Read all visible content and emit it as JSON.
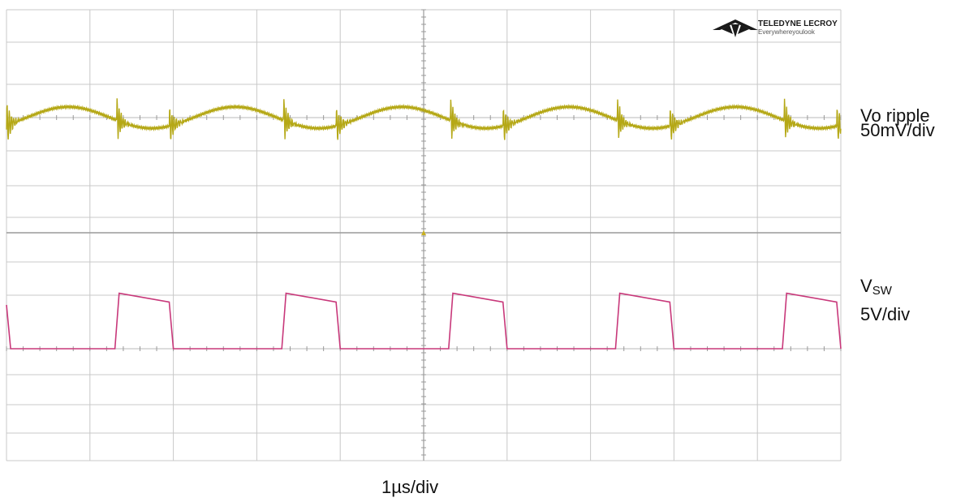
{
  "colors": {
    "trace_ripple": "#b5a816",
    "trace_sw": "#c8387a",
    "grid": "#c8c8c8",
    "axis": "#a0a0a0",
    "frame": "#8a8a8a"
  },
  "logo": {
    "brand": "TELEDYNE LECROY",
    "tagline": "Everywhereyoulook"
  },
  "labels": {
    "ch1_name": "Vo ripple",
    "ch1_scale": "50mV/div",
    "ch2_name_main": "V",
    "ch2_name_sub": "SW",
    "ch2_scale": "5V/div",
    "timebase": "1µs/div"
  },
  "chart_data": {
    "type": "line",
    "x_unit": "µs",
    "xlim": [
      0,
      10
    ],
    "grid": true,
    "switching_period_us": 2,
    "series": [
      {
        "name": "Vo ripple",
        "unit": "mV",
        "ylim": [
          -150,
          150
        ],
        "description_points": {
          "x": [
            0.0,
            0.3,
            0.8,
            1.3,
            1.35,
            1.6,
            1.9,
            2.3,
            2.8,
            3.3,
            3.35,
            3.6,
            3.9,
            4.3,
            4.8,
            5.3,
            5.35,
            5.6,
            5.9,
            6.3,
            6.8,
            7.3,
            7.35,
            7.6,
            7.9,
            8.3,
            8.8,
            9.3,
            9.35,
            9.6,
            10.0
          ],
          "y": [
            0,
            30,
            10,
            -30,
            40,
            -25,
            -20,
            30,
            10,
            -30,
            40,
            -25,
            -20,
            30,
            10,
            -30,
            40,
            -25,
            -20,
            30,
            10,
            -30,
            40,
            -25,
            -20,
            30,
            10,
            -30,
            40,
            -25,
            20
          ]
        }
      },
      {
        "name": "VSW",
        "unit": "V",
        "ylim": [
          -10,
          10
        ],
        "description_points": {
          "x": [
            0.0,
            0.05,
            1.3,
            1.35,
            1.95,
            2.0,
            3.3,
            3.35,
            3.95,
            4.0,
            5.3,
            5.35,
            5.95,
            6.0,
            7.3,
            7.35,
            7.95,
            8.0,
            9.3,
            9.35,
            9.95,
            10.0
          ],
          "y": [
            7.5,
            0,
            0,
            9.5,
            8,
            0,
            0,
            9.5,
            8,
            0,
            0,
            9.5,
            8,
            0,
            0,
            9.5,
            8,
            0,
            0,
            9.5,
            8,
            0
          ]
        }
      }
    ]
  }
}
